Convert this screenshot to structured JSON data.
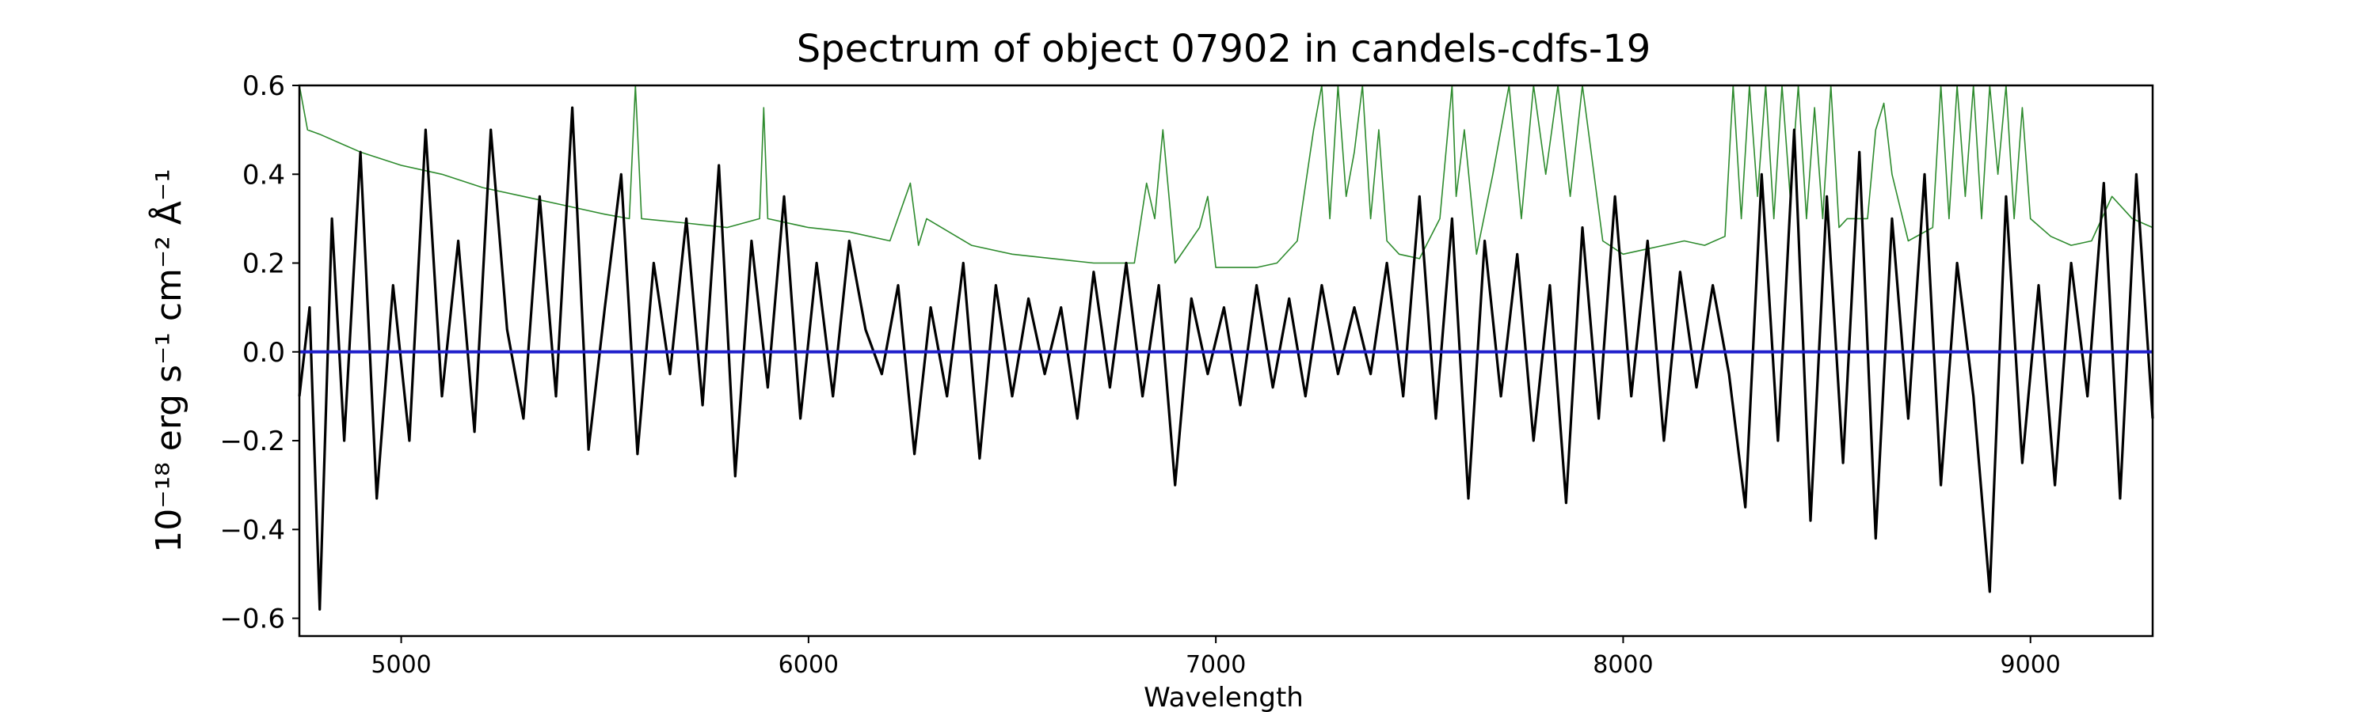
{
  "chart_data": {
    "type": "line",
    "title": "Spectrum of object 07902 in candels-cdfs-19",
    "xlabel": "Wavelength",
    "ylabel": "10⁻¹⁸ erg s⁻¹ cm⁻² Å⁻¹",
    "xlim": [
      4750,
      9300
    ],
    "ylim": [
      -0.64,
      0.6
    ],
    "xticks": [
      5000,
      6000,
      7000,
      8000,
      9000
    ],
    "yticks": [
      -0.6,
      -0.4,
      -0.2,
      0.0,
      0.2,
      0.4,
      0.6
    ],
    "ytick_labels": [
      "−0.6",
      "−0.4",
      "−0.2",
      "0.0",
      "0.2",
      "0.4",
      "0.6"
    ],
    "grid": false,
    "series": [
      {
        "role": "flux",
        "color": "#000000",
        "x": [
          4750,
          4775,
          4800,
          4830,
          4860,
          4900,
          4940,
          4980,
          5020,
          5060,
          5100,
          5140,
          5180,
          5220,
          5260,
          5300,
          5340,
          5380,
          5420,
          5460,
          5500,
          5540,
          5580,
          5620,
          5660,
          5700,
          5740,
          5780,
          5820,
          5860,
          5900,
          5940,
          5980,
          6020,
          6060,
          6100,
          6140,
          6180,
          6220,
          6260,
          6300,
          6340,
          6380,
          6420,
          6460,
          6500,
          6540,
          6580,
          6620,
          6660,
          6700,
          6740,
          6780,
          6820,
          6860,
          6900,
          6940,
          6980,
          7020,
          7060,
          7100,
          7140,
          7180,
          7220,
          7260,
          7300,
          7340,
          7380,
          7420,
          7460,
          7500,
          7540,
          7580,
          7620,
          7660,
          7700,
          7740,
          7780,
          7820,
          7860,
          7900,
          7940,
          7980,
          8020,
          8060,
          8100,
          8140,
          8180,
          8220,
          8260,
          8300,
          8340,
          8380,
          8420,
          8460,
          8500,
          8540,
          8580,
          8620,
          8660,
          8700,
          8740,
          8780,
          8820,
          8860,
          8900,
          8940,
          8980,
          9020,
          9060,
          9100,
          9140,
          9180,
          9220,
          9260,
          9300
        ],
        "y": [
          -0.1,
          0.1,
          -0.58,
          0.3,
          -0.2,
          0.45,
          -0.33,
          0.15,
          -0.2,
          0.5,
          -0.1,
          0.25,
          -0.18,
          0.5,
          0.05,
          -0.15,
          0.35,
          -0.1,
          0.55,
          -0.22,
          0.1,
          0.4,
          -0.23,
          0.2,
          -0.05,
          0.3,
          -0.12,
          0.42,
          -0.28,
          0.25,
          -0.08,
          0.35,
          -0.15,
          0.2,
          -0.1,
          0.25,
          0.05,
          -0.05,
          0.15,
          -0.23,
          0.1,
          -0.1,
          0.2,
          -0.24,
          0.15,
          -0.1,
          0.12,
          -0.05,
          0.1,
          -0.15,
          0.18,
          -0.08,
          0.2,
          -0.1,
          0.15,
          -0.3,
          0.12,
          -0.05,
          0.1,
          -0.12,
          0.15,
          -0.08,
          0.12,
          -0.1,
          0.15,
          -0.05,
          0.1,
          -0.05,
          0.2,
          -0.1,
          0.35,
          -0.15,
          0.3,
          -0.33,
          0.25,
          -0.1,
          0.22,
          -0.2,
          0.15,
          -0.34,
          0.28,
          -0.15,
          0.35,
          -0.1,
          0.25,
          -0.2,
          0.18,
          -0.08,
          0.15,
          -0.05,
          -0.35,
          0.4,
          -0.2,
          0.5,
          -0.38,
          0.35,
          -0.25,
          0.45,
          -0.42,
          0.3,
          -0.15,
          0.4,
          -0.3,
          0.2,
          -0.1,
          -0.54,
          0.35,
          -0.25,
          0.15,
          -0.3,
          0.2,
          -0.1,
          0.38,
          -0.33,
          0.4,
          -0.15
        ]
      },
      {
        "role": "error",
        "color": "#2e8b2e",
        "x": [
          4750,
          4770,
          4800,
          4850,
          4900,
          5000,
          5100,
          5200,
          5300,
          5400,
          5500,
          5560,
          5575,
          5590,
          5700,
          5800,
          5880,
          5890,
          5900,
          6000,
          6100,
          6200,
          6250,
          6270,
          6290,
          6400,
          6500,
          6600,
          6700,
          6800,
          6830,
          6850,
          6870,
          6900,
          6960,
          6980,
          7000,
          7100,
          7150,
          7200,
          7240,
          7260,
          7280,
          7300,
          7320,
          7340,
          7360,
          7380,
          7400,
          7420,
          7450,
          7500,
          7550,
          7580,
          7590,
          7610,
          7640,
          7680,
          7720,
          7750,
          7780,
          7810,
          7840,
          7870,
          7900,
          7950,
          8000,
          8050,
          8100,
          8150,
          8200,
          8250,
          8270,
          8290,
          8310,
          8330,
          8350,
          8370,
          8390,
          8410,
          8430,
          8450,
          8470,
          8490,
          8510,
          8530,
          8550,
          8600,
          8620,
          8640,
          8660,
          8700,
          8760,
          8780,
          8800,
          8820,
          8840,
          8860,
          8880,
          8900,
          8920,
          8940,
          8960,
          8980,
          9000,
          9050,
          9100,
          9150,
          9200,
          9250,
          9300
        ],
        "y": [
          0.6,
          0.5,
          0.49,
          0.47,
          0.45,
          0.42,
          0.4,
          0.37,
          0.35,
          0.33,
          0.31,
          0.3,
          0.6,
          0.3,
          0.29,
          0.28,
          0.3,
          0.55,
          0.3,
          0.28,
          0.27,
          0.25,
          0.38,
          0.24,
          0.3,
          0.24,
          0.22,
          0.21,
          0.2,
          0.2,
          0.38,
          0.3,
          0.5,
          0.2,
          0.28,
          0.35,
          0.19,
          0.19,
          0.2,
          0.25,
          0.5,
          0.6,
          0.3,
          0.6,
          0.35,
          0.45,
          0.6,
          0.3,
          0.5,
          0.25,
          0.22,
          0.21,
          0.3,
          0.6,
          0.35,
          0.5,
          0.22,
          0.4,
          0.6,
          0.3,
          0.6,
          0.4,
          0.6,
          0.35,
          0.6,
          0.25,
          0.22,
          0.23,
          0.24,
          0.25,
          0.24,
          0.26,
          0.6,
          0.3,
          0.6,
          0.35,
          0.6,
          0.3,
          0.6,
          0.35,
          0.6,
          0.3,
          0.55,
          0.3,
          0.6,
          0.28,
          0.3,
          0.3,
          0.5,
          0.56,
          0.4,
          0.25,
          0.28,
          0.6,
          0.3,
          0.6,
          0.35,
          0.6,
          0.3,
          0.6,
          0.4,
          0.6,
          0.3,
          0.55,
          0.3,
          0.26,
          0.24,
          0.25,
          0.35,
          0.3,
          0.28
        ]
      },
      {
        "role": "model",
        "color": "#1f1fcc",
        "x": [
          4750,
          9300
        ],
        "y": [
          0.0,
          0.0
        ]
      }
    ]
  }
}
